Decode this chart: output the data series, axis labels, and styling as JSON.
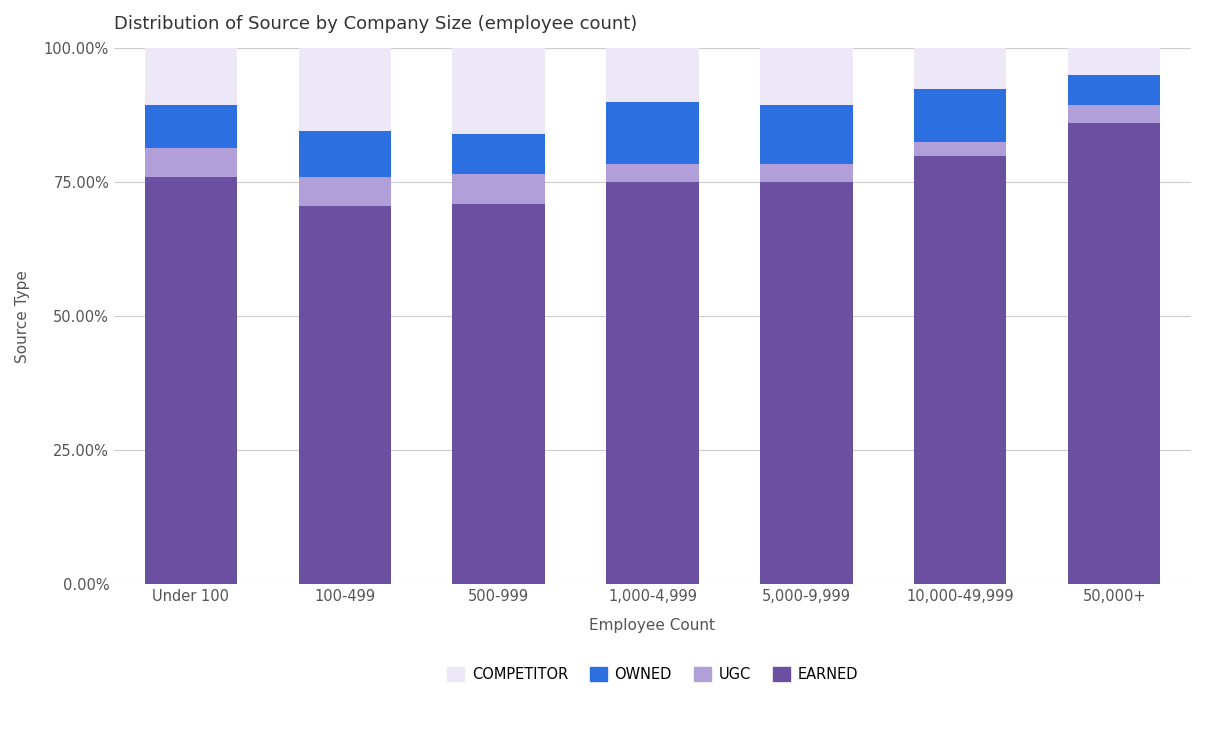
{
  "categories": [
    "Under 100",
    "100-499",
    "500-999",
    "1,000-4,999",
    "5,000-9,999",
    "10,000-49,999",
    "50,000+"
  ],
  "series": {
    "EARNED": [
      76.0,
      70.5,
      71.0,
      75.0,
      75.0,
      80.0,
      86.0
    ],
    "UGC": [
      5.5,
      5.5,
      5.5,
      3.5,
      3.5,
      2.5,
      3.5
    ],
    "OWNED": [
      8.0,
      8.5,
      7.5,
      11.5,
      11.0,
      10.0,
      5.5
    ],
    "COMPETITOR": [
      10.5,
      15.5,
      16.0,
      10.0,
      10.5,
      7.5,
      5.0
    ]
  },
  "colors": {
    "EARNED": "#6B4FA0",
    "UGC": "#B09FD8",
    "OWNED": "#2B6FE0",
    "COMPETITOR": "#EDE8F8"
  },
  "title": "Distribution of Source by Company Size (employee count)",
  "xlabel": "Employee Count",
  "ylabel": "Source Type",
  "ylim": [
    0,
    100
  ],
  "yticks": [
    0,
    25,
    50,
    75,
    100
  ],
  "ytick_labels": [
    "0.00%",
    "25.00%",
    "50.00%",
    "75.00%",
    "100.00%"
  ],
  "legend_order": [
    "COMPETITOR",
    "OWNED",
    "UGC",
    "EARNED"
  ],
  "background_color": "#ffffff",
  "grid_color": "#cccccc",
  "bar_width": 0.6
}
